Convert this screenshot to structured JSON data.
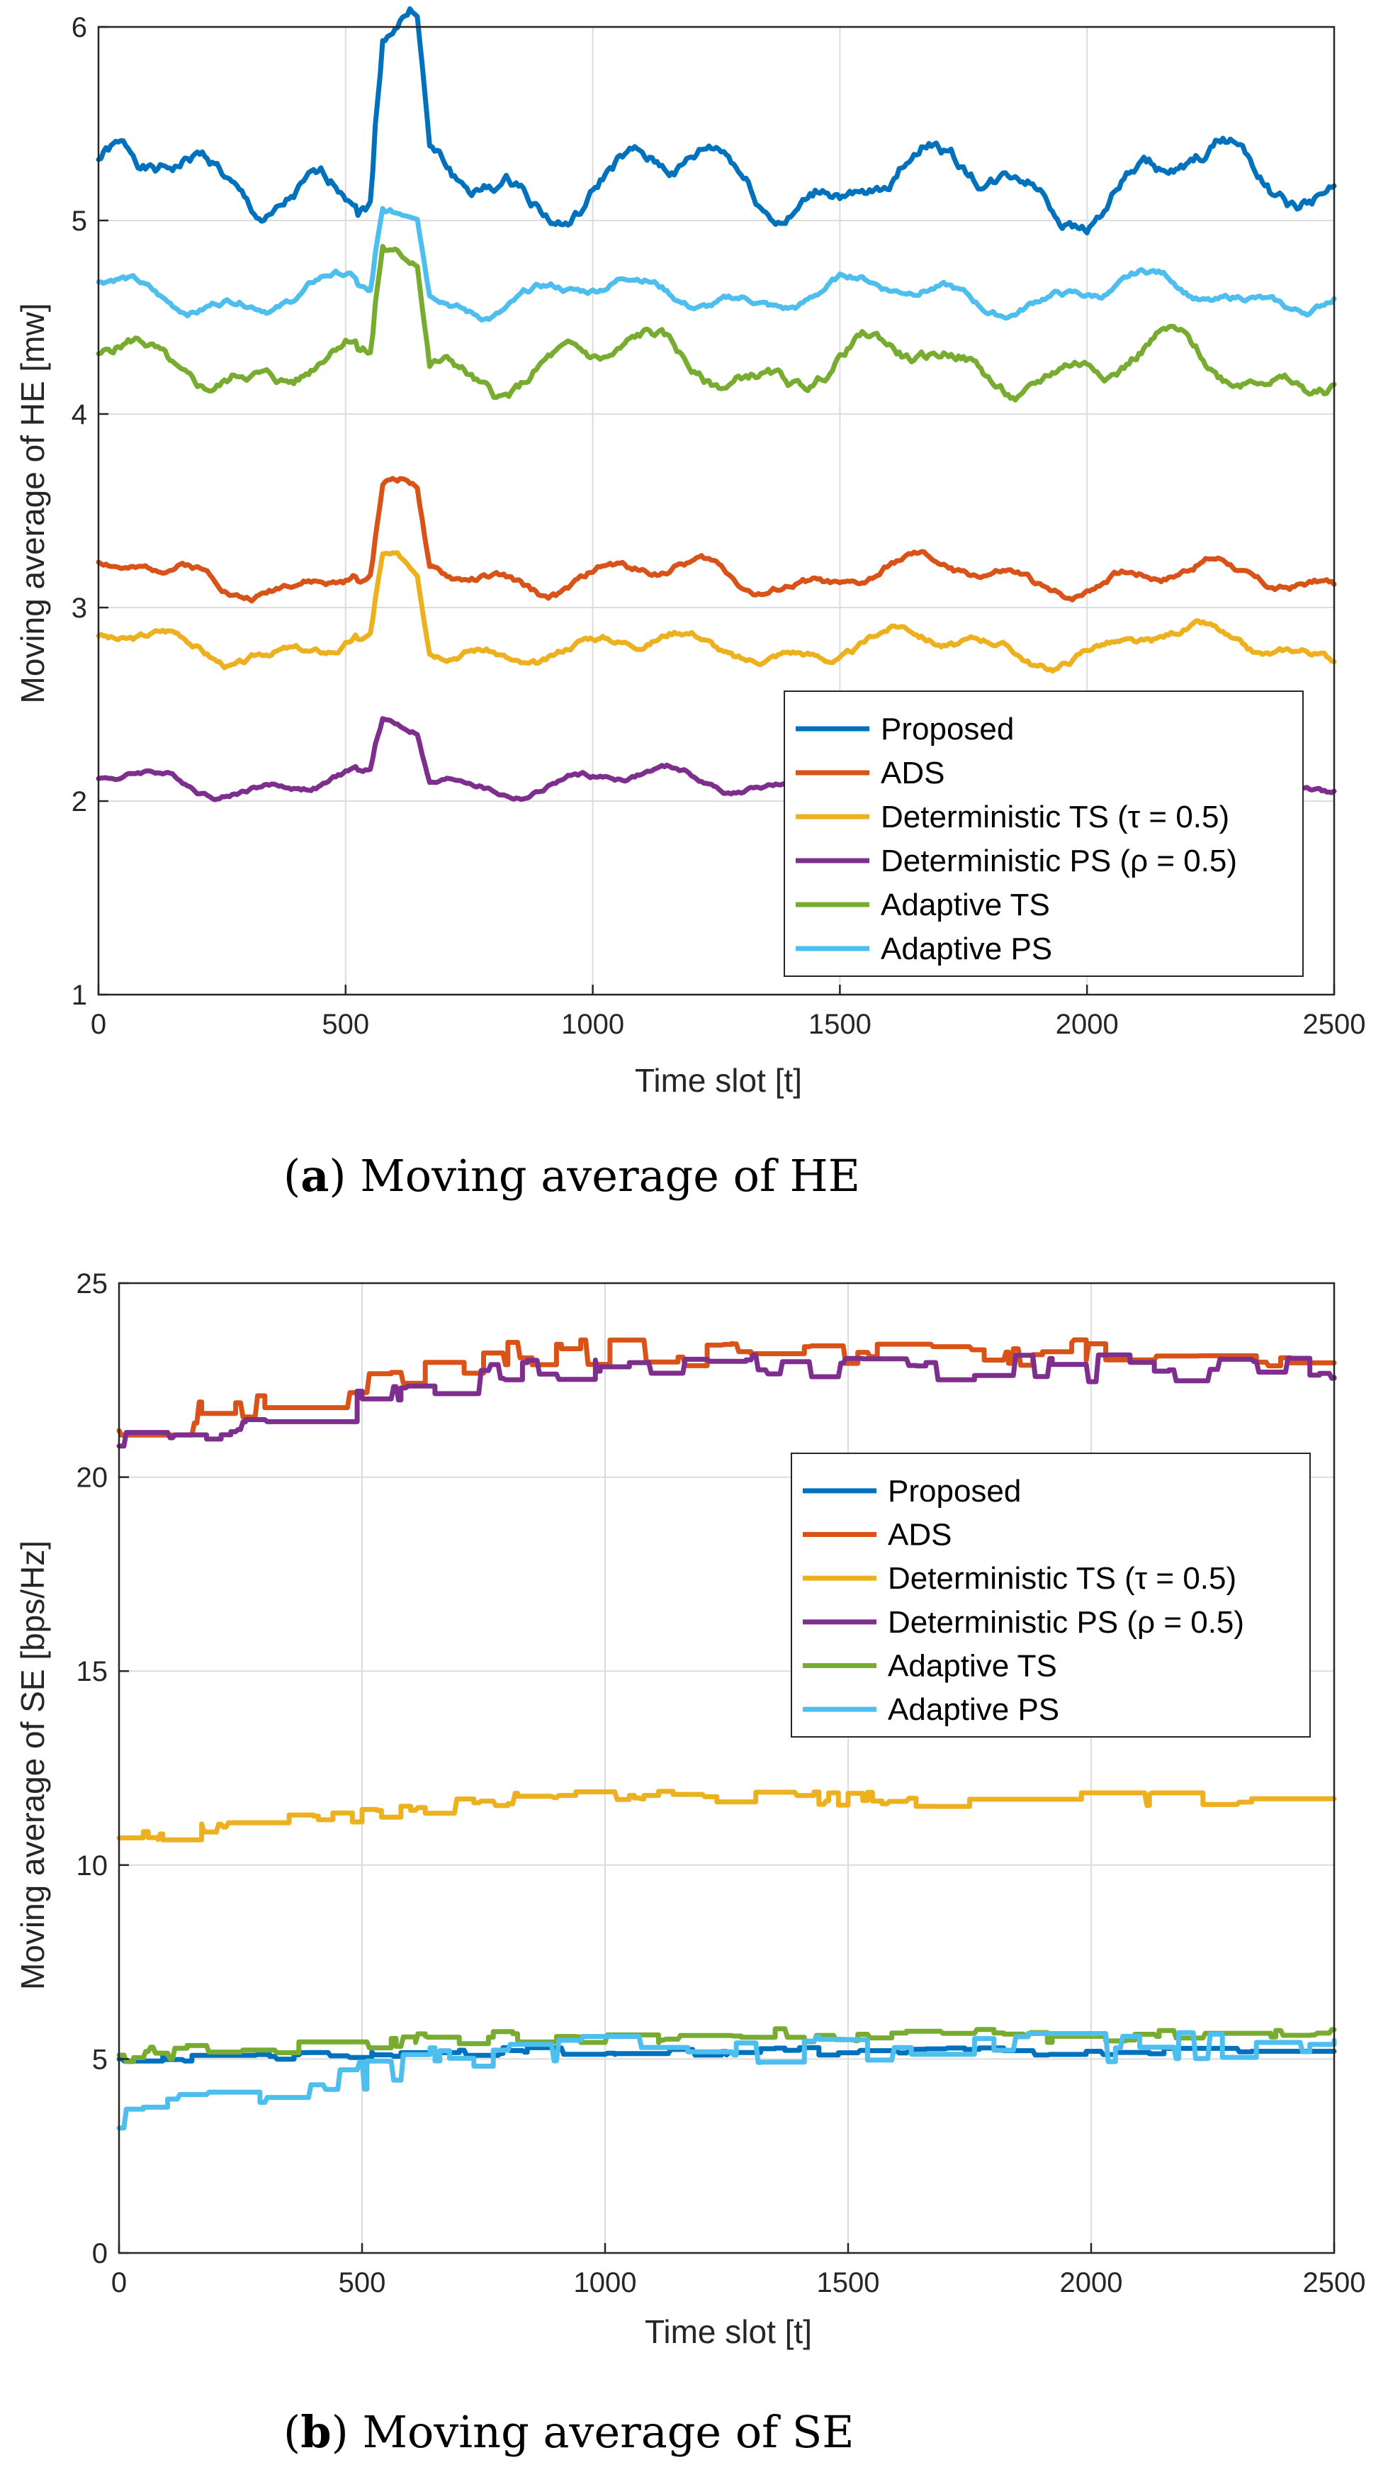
{
  "chart_data": [
    {
      "type": "line",
      "panel": "a",
      "caption_label": "a",
      "caption_text": "Moving average of HE",
      "xlabel": "Time slot [t]",
      "ylabel": "Moving average of HE [mw]",
      "xlim": [
        0,
        2500
      ],
      "ylim": [
        1,
        6
      ],
      "xticks": [
        "0",
        "500",
        "1000",
        "1500",
        "2000",
        "2500"
      ],
      "yticks": [
        "1",
        "2",
        "3",
        "4",
        "5",
        "6"
      ],
      "grid": true,
      "legend_position": "bottom-right",
      "series": [
        {
          "name": "Proposed",
          "color": "#0072BD",
          "base": 5.2,
          "amp": 0.14,
          "peak": 0.68,
          "seed": 1
        },
        {
          "name": "ADS",
          "color": "#D95319",
          "base": 3.16,
          "amp": 0.07,
          "peak": 0.4,
          "seed": 2
        },
        {
          "name": "Deterministic TS (τ = 0.5)",
          "color": "#EDB120",
          "base": 2.8,
          "amp": 0.07,
          "peak": 0.35,
          "seed": 3
        },
        {
          "name": "Deterministic PS (ρ = 0.5)",
          "color": "#7E2F8E",
          "base": 2.1,
          "amp": 0.05,
          "peak": 0.26,
          "seed": 4
        },
        {
          "name": "Adaptive TS",
          "color": "#77AC30",
          "base": 4.25,
          "amp": 0.11,
          "peak": 0.55,
          "seed": 5
        },
        {
          "name": "Adaptive PS",
          "color": "#4DBEEE",
          "base": 4.62,
          "amp": 0.07,
          "peak": 0.4,
          "seed": 6
        }
      ]
    },
    {
      "type": "line",
      "panel": "b",
      "caption_label": "b",
      "caption_text": "Moving average of SE",
      "xlabel": "Time slot [t]",
      "ylabel": "Moving average of SE [bps/Hz]",
      "xlim": [
        0,
        2500
      ],
      "ylim": [
        0,
        25
      ],
      "xticks": [
        "0",
        "500",
        "1000",
        "1500",
        "2000",
        "2500"
      ],
      "yticks": [
        "0",
        "5",
        "10",
        "15",
        "20",
        "25"
      ],
      "grid": true,
      "legend_position": "top-right",
      "series": [
        {
          "name": "Proposed",
          "color": "#0072BD",
          "start": 5.0,
          "end": 5.2,
          "amp": 0.1,
          "seed": 11
        },
        {
          "name": "ADS",
          "color": "#D95319",
          "start": 21.2,
          "end": 23.2,
          "amp": 0.35,
          "seed": 12
        },
        {
          "name": "Deterministic TS (τ = 0.5)",
          "color": "#EDB120",
          "start": 10.7,
          "end": 11.7,
          "amp": 0.2,
          "seed": 13
        },
        {
          "name": "Deterministic PS (ρ = 0.5)",
          "color": "#7E2F8E",
          "start": 20.8,
          "end": 22.8,
          "amp": 0.35,
          "seed": 14
        },
        {
          "name": "Adaptive TS",
          "color": "#77AC30",
          "start": 5.1,
          "end": 5.6,
          "amp": 0.18,
          "seed": 15
        },
        {
          "name": "Adaptive PS",
          "color": "#4DBEEE",
          "start": 3.4,
          "end": 5.3,
          "amp": 0.4,
          "seed": 16
        }
      ]
    }
  ]
}
